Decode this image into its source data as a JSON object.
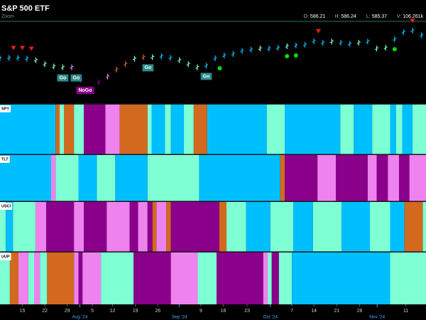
{
  "chart_data": {
    "type": "gonogo",
    "title": "S&P 500 ETF",
    "subtitle": "Zoom",
    "quote": [
      {
        "label": "O:",
        "value": 586.21
      },
      {
        "label": "H:",
        "value": 586.24
      },
      {
        "label": "L:",
        "value": 585.37
      },
      {
        "label": "V:",
        "value": {
          "value": 106261,
          "label": "106.261k"
        }
      }
    ],
    "xlim": [
      0,
      95
    ],
    "xticks": [
      {
        "value": 5,
        "label": "15"
      },
      {
        "value": 10,
        "label": "22"
      },
      {
        "value": 15,
        "label": "29"
      },
      {
        "value": 20.6,
        "label": "5"
      },
      {
        "value": 25.1,
        "label": "12"
      },
      {
        "value": 30.2,
        "label": "19"
      },
      {
        "value": 35.2,
        "label": "26"
      },
      {
        "value": 44.8,
        "label": "9"
      },
      {
        "value": 49.8,
        "label": "16"
      },
      {
        "value": 55.1,
        "label": "23"
      },
      {
        "value": 65.1,
        "label": "7"
      },
      {
        "value": 70,
        "label": "14"
      },
      {
        "value": 75.1,
        "label": "21"
      },
      {
        "value": 80.2,
        "label": "28"
      },
      {
        "value": 90.5,
        "label": "11"
      }
    ],
    "xticks_months": [
      {
        "value": 17.8,
        "label": "Aug '24"
      },
      {
        "value": 40,
        "label": "Sep '24"
      },
      {
        "value": 60.3,
        "label": "Oct '24"
      },
      {
        "value": 84.1,
        "label": "Nov '24"
      }
    ],
    "ylim": [
      505,
      610
    ],
    "price": {
      "x": [
        0,
        2,
        4,
        6,
        8,
        10,
        12,
        14,
        16,
        18,
        20,
        22,
        24,
        26,
        28,
        30,
        32,
        34,
        36,
        38,
        40,
        42,
        44,
        46,
        48,
        50,
        52,
        54,
        56,
        58,
        60,
        62,
        64,
        66,
        68,
        70,
        72,
        74,
        76,
        78,
        80,
        82,
        84,
        86,
        88,
        90,
        92,
        94
      ],
      "values": [
        562.5,
        563,
        563,
        562,
        560,
        555,
        552,
        551,
        551,
        535,
        523,
        532,
        539,
        548,
        555,
        562,
        564,
        564,
        565,
        563,
        560,
        555,
        551,
        553,
        562.5,
        566,
        568,
        572,
        573.5,
        575,
        575,
        576,
        578,
        579,
        580,
        584.5,
        582.5,
        584,
        582.5,
        581,
        582.5,
        584,
        575,
        576,
        587,
        596,
        598,
        592
      ],
      "colors": [
        "#00bfff",
        "#00bfff",
        "#00bfff",
        "#00bfff",
        "#7fffd4",
        "#7fffd4",
        "#7fffd4",
        "#7fffd4",
        "#ee82ee",
        "#8b008b",
        "#8b008b",
        "#8b008b",
        "#ee82ee",
        "#d2691e",
        "#d2691e",
        "#7fffd4",
        "#d2691e",
        "#7fffd4",
        "#00bfff",
        "#00bfff",
        "#7fffd4",
        "#7fffd4",
        "#7fffd4",
        "#00bfff",
        "#00bfff",
        "#00bfff",
        "#00bfff",
        "#00bfff",
        "#00bfff",
        "#7fffd4",
        "#00bfff",
        "#00bfff",
        "#7fffd4",
        "#00bfff",
        "#00bfff",
        "#00bfff",
        "#00bfff",
        "#7fffd4",
        "#00bfff",
        "#00bfff",
        "#7fffd4",
        "#00bfff",
        "#7fffd4",
        "#7fffd4",
        "#00bfff",
        "#00bfff",
        "#00bfff",
        "#00bfff"
      ]
    },
    "down_arrows": {
      "x": [
        3,
        5,
        7,
        71,
        92
      ],
      "color": "#e8201a"
    },
    "dots": {
      "x": [
        49,
        64,
        66,
        88
      ],
      "color": "#00e000"
    },
    "annotations": [
      {
        "text": "Go",
        "x": 14,
        "color": "#2a8a8a"
      },
      {
        "text": "Go",
        "x": 17,
        "color": "#2a8a8a"
      },
      {
        "text": "NoGo",
        "x": 19,
        "color": "#8b008b"
      },
      {
        "text": "Go",
        "x": 33,
        "color": "#2a8a8a"
      },
      {
        "text": "Go",
        "x": 46,
        "color": "#2a8a8a"
      }
    ],
    "panels": [
      {
        "name": "SPY",
        "x": [
          0,
          12.4,
          13.3,
          14.3,
          16.5,
          18.7,
          23.5,
          26.7,
          32.9,
          33.8,
          36.8,
          38.1,
          41,
          43.2,
          46.2,
          59.5,
          63.5,
          75.9,
          78.9,
          83,
          87,
          88.3,
          89.7,
          92
        ],
        "colors": [
          "#00bfff",
          "#d2691e",
          "#7fffd4",
          "#d2691e",
          "#7fffd4",
          "#8b008b",
          "#ee82ee",
          "#d2691e",
          "#7fffd4",
          "#00bfff",
          "#7fffd4",
          "#00bfff",
          "#7fffd4",
          "#d2691e",
          "#00bfff",
          "#7fffd4",
          "#00bfff",
          "#7fffd4",
          "#00bfff",
          "#7fffd4",
          "#00bfff",
          "#7fffd4",
          "#00bfff",
          "#7fffd4"
        ]
      },
      {
        "name": "TLT",
        "x": [
          0,
          11.4,
          12.4,
          17.5,
          21.6,
          25.7,
          32.9,
          44.4,
          62.5,
          63.5,
          70.8,
          74.9,
          82,
          84,
          86.5,
          89,
          91.3
        ],
        "colors": [
          "#00bfff",
          "#ee82ee",
          "#7fffd4",
          "#00bfff",
          "#7fffd4",
          "#00bfff",
          "#7fffd4",
          "#00bfff",
          "#d2691e",
          "#8b008b",
          "#ee82ee",
          "#8b008b",
          "#ee82ee",
          "#8b008b",
          "#ee82ee",
          "#8b008b",
          "#ee82ee"
        ]
      },
      {
        "name": "USCI",
        "x": [
          0,
          1.3,
          2.9,
          7.9,
          10.3,
          16.5,
          18.7,
          23.8,
          28.9,
          30.8,
          32.9,
          34,
          34.9,
          37.1,
          38.1,
          48.9,
          50.5,
          54.9,
          60.3,
          65.4,
          69.8,
          76.2,
          82.5,
          87,
          90.2,
          94.3
        ],
        "colors": [
          "#7fffd4",
          "#00bfff",
          "#7fffd4",
          "#ee82ee",
          "#8b008b",
          "#ee82ee",
          "#8b008b",
          "#ee82ee",
          "#8b008b",
          "#ee82ee",
          "#8b008b",
          "#d2691e",
          "#ee82ee",
          "#d2691e",
          "#8b008b",
          "#d2691e",
          "#7fffd4",
          "#00bfff",
          "#7fffd4",
          "#00bfff",
          "#7fffd4",
          "#00bfff",
          "#7fffd4",
          "#00bfff",
          "#d2691e",
          "#7fffd4"
        ]
      },
      {
        "name": "UUP",
        "x": [
          0,
          2.2,
          4.1,
          6.3,
          7.6,
          8.9,
          10.5,
          16.5,
          17.5,
          18.4,
          22.5,
          29.8,
          38.1,
          44.1,
          48.3,
          58.7,
          59.7,
          60.6,
          62.2,
          65.1,
          87
        ],
        "colors": [
          "#7fffd4",
          "#d2691e",
          "#ee82ee",
          "#7fffd4",
          "#ee82ee",
          "#7fffd4",
          "#d2691e",
          "#ee82ee",
          "#8b008b",
          "#ee82ee",
          "#7fffd4",
          "#8b008b",
          "#ee82ee",
          "#7fffd4",
          "#8b008b",
          "#ee82ee",
          "#7fffd4",
          "#8b008b",
          "#7fffd4",
          "#00bfff",
          "#7fffd4"
        ]
      }
    ]
  }
}
